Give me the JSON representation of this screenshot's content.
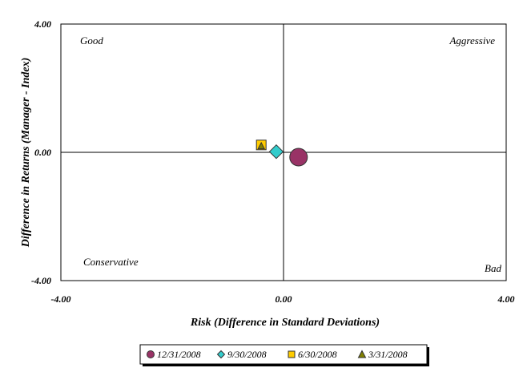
{
  "chart_data": {
    "type": "scatter",
    "title": "",
    "xlabel": "Risk (Difference in Standard Deviations)",
    "ylabel": "Difference in Returns (Manager - Index)",
    "xlim": [
      -4,
      4
    ],
    "ylim": [
      -4,
      4
    ],
    "x_ticks": [
      "-4.00",
      "0.00",
      "4.00"
    ],
    "y_ticks": [
      "4.00",
      "0.00",
      "-4.00"
    ],
    "grid": false,
    "legend_position": "bottom",
    "quadrant_labels": {
      "top_left": "Good",
      "top_right": "Aggressive",
      "bottom_left": "Conservative",
      "bottom_right": "Bad"
    },
    "series": [
      {
        "name": "12/31/2008",
        "marker": "circle",
        "color": "#993366",
        "x": 0.27,
        "y": -0.15
      },
      {
        "name": "9/30/2008",
        "marker": "diamond",
        "color": "#33CCCC",
        "x": -0.13,
        "y": 0.02
      },
      {
        "name": "6/30/2008",
        "marker": "square",
        "color": "#FFCC00",
        "x": -0.4,
        "y": 0.23
      },
      {
        "name": "3/31/2008",
        "marker": "triangle",
        "color": "#808000",
        "x": -0.4,
        "y": 0.2
      }
    ]
  }
}
